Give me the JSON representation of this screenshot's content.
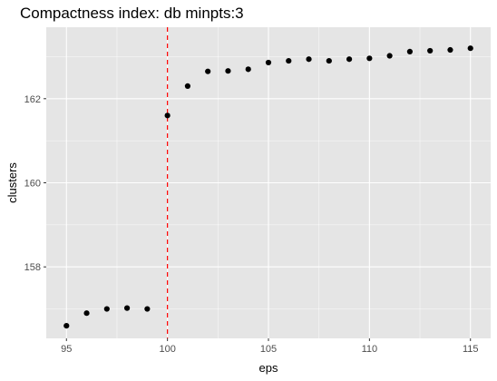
{
  "chart_data": {
    "type": "scatter",
    "title": "Compactness index: db minpts:3",
    "xlabel": "eps",
    "ylabel": "clusters",
    "xlim": [
      94.0,
      116.0
    ],
    "ylim": [
      156.3,
      163.7
    ],
    "x_ticks": [
      95,
      100,
      105,
      110,
      115
    ],
    "y_ticks": [
      158,
      160,
      162
    ],
    "x_tick_labels": [
      "95",
      "100",
      "105",
      "110",
      "115"
    ],
    "y_tick_labels": [
      "158",
      "160",
      "162"
    ],
    "grid": true,
    "legend": "none",
    "reference_line": {
      "axis": "x",
      "value": 100,
      "style": "dashed",
      "color": "#ff0000"
    },
    "points": [
      {
        "x": 95,
        "y": 156.6
      },
      {
        "x": 96,
        "y": 156.9
      },
      {
        "x": 97,
        "y": 157.0
      },
      {
        "x": 98,
        "y": 157.02
      },
      {
        "x": 99,
        "y": 157.0
      },
      {
        "x": 100,
        "y": 161.6
      },
      {
        "x": 101,
        "y": 162.3
      },
      {
        "x": 102,
        "y": 162.65
      },
      {
        "x": 103,
        "y": 162.66
      },
      {
        "x": 104,
        "y": 162.7
      },
      {
        "x": 105,
        "y": 162.86
      },
      {
        "x": 106,
        "y": 162.9
      },
      {
        "x": 107,
        "y": 162.94
      },
      {
        "x": 108,
        "y": 162.9
      },
      {
        "x": 109,
        "y": 162.94
      },
      {
        "x": 110,
        "y": 162.96
      },
      {
        "x": 111,
        "y": 163.02
      },
      {
        "x": 112,
        "y": 163.12
      },
      {
        "x": 113,
        "y": 163.14
      },
      {
        "x": 114,
        "y": 163.16
      },
      {
        "x": 115,
        "y": 163.2
      }
    ],
    "colors": {
      "panel": "#e5e5e5",
      "grid_major": "#ffffff",
      "point": "#000000",
      "reference": "#ff0000",
      "tick_label": "#4d4d4d"
    }
  }
}
